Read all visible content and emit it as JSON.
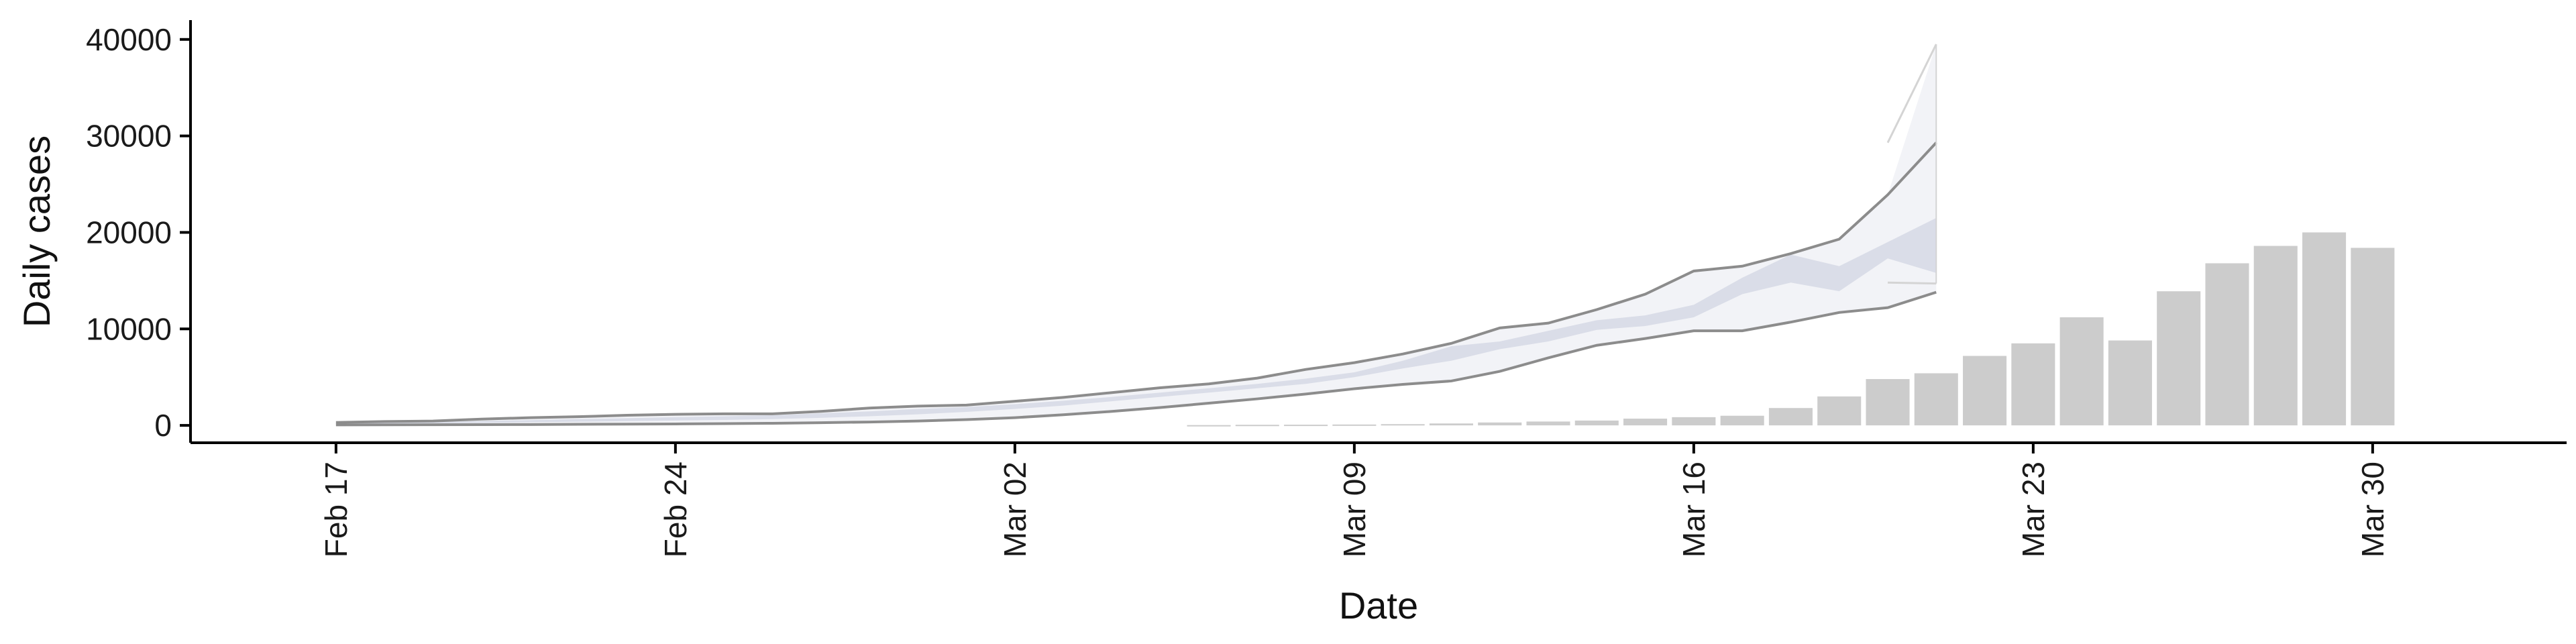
{
  "chart_data": {
    "type": "bar",
    "title": "",
    "xlabel": "Date",
    "ylabel": "Daily cases",
    "ylim": [
      -1800,
      42000
    ],
    "xlim": [
      "2020-02-14",
      "2020-04-03"
    ],
    "yticks": [
      0,
      10000,
      20000,
      30000,
      40000
    ],
    "ytick_labels": [
      "0",
      "10000",
      "20000",
      "30000",
      "40000"
    ],
    "xticks": [
      "2020-02-17",
      "2020-02-24",
      "2020-03-02",
      "2020-03-09",
      "2020-03-16",
      "2020-03-23",
      "2020-03-30"
    ],
    "xtick_labels": [
      "Feb 17",
      "Feb 24",
      "Mar 02",
      "Mar 09",
      "Mar 16",
      "Mar 23",
      "Mar 30"
    ],
    "grid": false,
    "legend": "none",
    "colors": {
      "bars": "#cccccc",
      "inner_band": "#d7dae5",
      "outer_band": "#f2f3f7",
      "band_outline": "#8c8c8c",
      "forecast_outline": "#d4d4d4",
      "axis": "#000000"
    },
    "bars": {
      "dates": [
        "2020-03-06",
        "2020-03-07",
        "2020-03-08",
        "2020-03-09",
        "2020-03-10",
        "2020-03-11",
        "2020-03-12",
        "2020-03-13",
        "2020-03-14",
        "2020-03-15",
        "2020-03-16",
        "2020-03-17",
        "2020-03-18",
        "2020-03-19",
        "2020-03-20",
        "2020-03-21",
        "2020-03-22",
        "2020-03-23",
        "2020-03-24",
        "2020-03-25",
        "2020-03-26",
        "2020-03-27",
        "2020-03-28",
        "2020-03-29",
        "2020-03-30"
      ],
      "values": [
        30,
        60,
        70,
        90,
        130,
        200,
        300,
        400,
        500,
        700,
        850,
        1000,
        1800,
        3000,
        4800,
        5400,
        7200,
        8500,
        11200,
        8800,
        13900,
        16800,
        18600,
        20000,
        18400
      ]
    },
    "bands": {
      "dates": [
        "2020-02-17",
        "2020-02-18",
        "2020-02-19",
        "2020-02-20",
        "2020-02-21",
        "2020-02-22",
        "2020-02-23",
        "2020-02-24",
        "2020-02-25",
        "2020-02-26",
        "2020-02-27",
        "2020-02-28",
        "2020-02-29",
        "2020-03-01",
        "2020-03-02",
        "2020-03-03",
        "2020-03-04",
        "2020-03-05",
        "2020-03-06",
        "2020-03-07",
        "2020-03-08",
        "2020-03-09",
        "2020-03-10",
        "2020-03-11",
        "2020-03-12",
        "2020-03-13",
        "2020-03-14",
        "2020-03-15",
        "2020-03-16",
        "2020-03-17",
        "2020-03-18",
        "2020-03-19",
        "2020-03-20",
        "2020-03-21"
      ],
      "outer_upper": [
        300,
        400,
        450,
        650,
        800,
        900,
        1050,
        1150,
        1200,
        1200,
        1450,
        1800,
        2000,
        2100,
        2500,
        2900,
        3400,
        3900,
        4300,
        4900,
        5800,
        6500,
        7400,
        8500,
        10100,
        10600,
        12000,
        13600,
        16000,
        16500,
        17800,
        19300,
        23900,
        29300
      ],
      "inner_upper": [
        250,
        300,
        350,
        450,
        550,
        650,
        750,
        850,
        950,
        1050,
        1250,
        1450,
        1700,
        1900,
        2200,
        2550,
        2950,
        3400,
        3850,
        4300,
        4850,
        5500,
        6700,
        8200,
        8700,
        9800,
        10900,
        11400,
        12500,
        15300,
        17700,
        16500,
        19000,
        21500
      ],
      "inner_lower": [
        150,
        180,
        210,
        260,
        320,
        380,
        440,
        500,
        560,
        650,
        780,
        950,
        1150,
        1400,
        1700,
        2050,
        2500,
        2950,
        3400,
        3850,
        4300,
        5000,
        5900,
        6700,
        7900,
        8700,
        9900,
        10300,
        11200,
        13600,
        14800,
        13900,
        17300,
        15800
      ],
      "outer_lower": [
        50,
        60,
        70,
        80,
        90,
        110,
        130,
        150,
        180,
        220,
        280,
        350,
        450,
        600,
        800,
        1100,
        1450,
        1850,
        2300,
        2750,
        3250,
        3800,
        4250,
        4600,
        5600,
        7000,
        8300,
        9000,
        9800,
        9800,
        10700,
        11700,
        12200,
        13800
      ],
      "forecast_upper": [
        29300,
        39500
      ],
      "forecast_lower": [
        14800,
        14700
      ],
      "forecast_dates": [
        "2020-03-20",
        "2020-03-21"
      ]
    }
  }
}
